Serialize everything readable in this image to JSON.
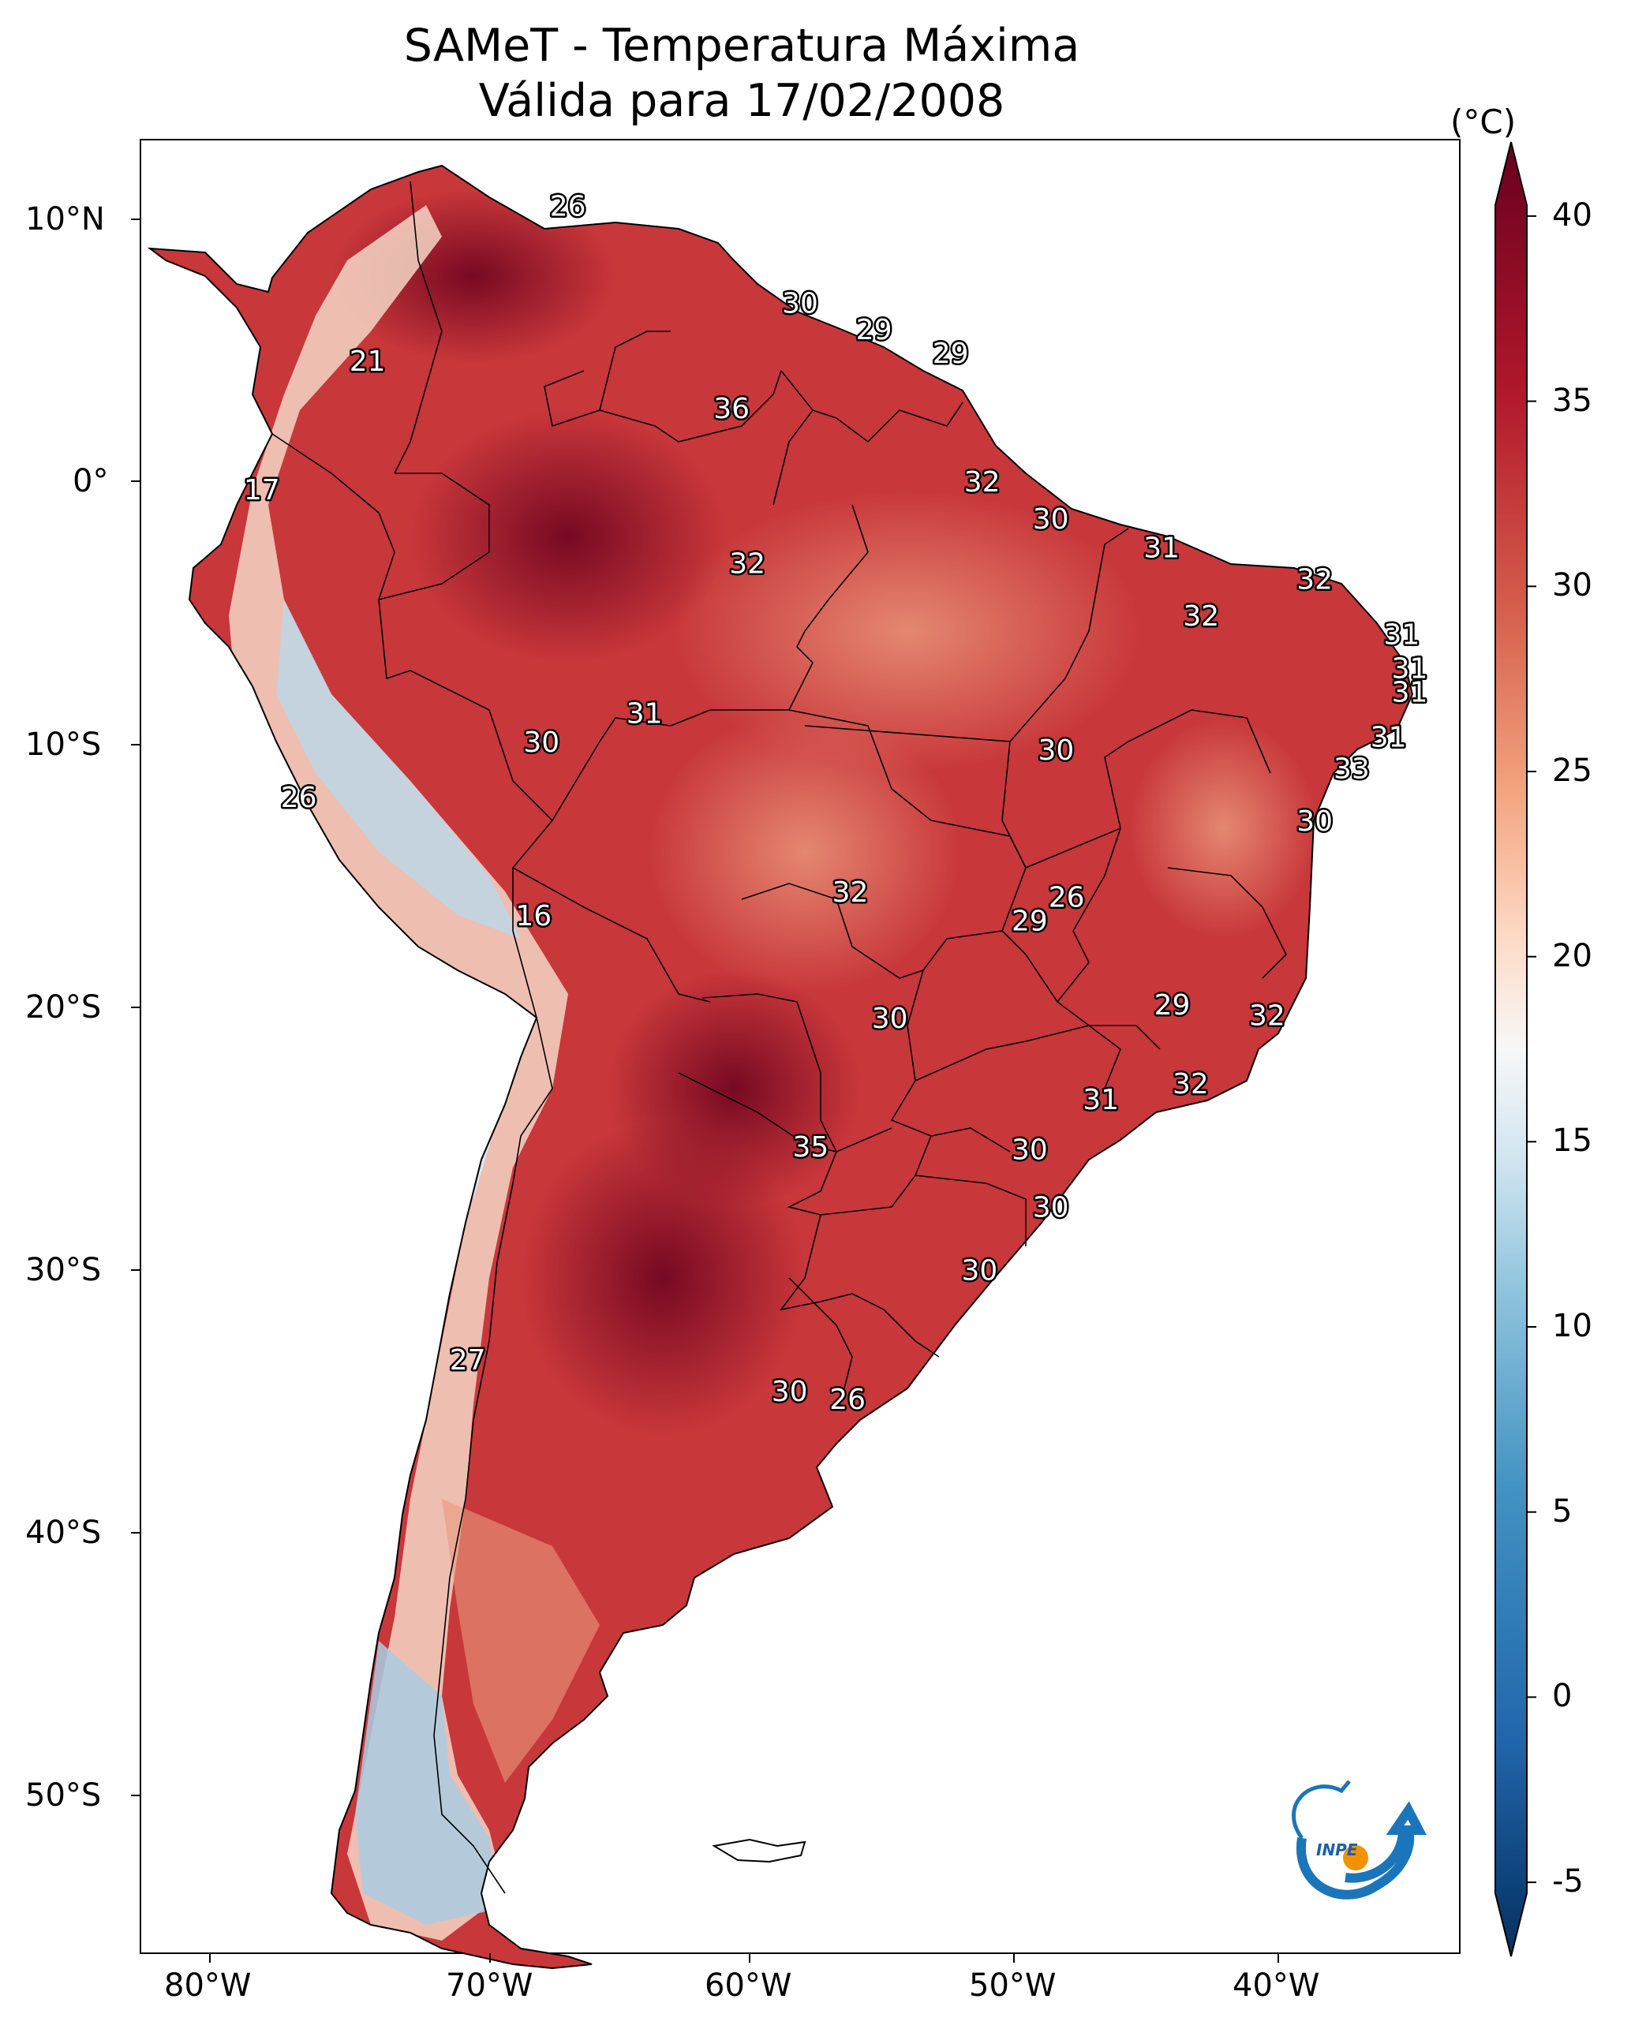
{
  "title": {
    "line1": "SAMeT - Temperatura Máxima",
    "line2": "Válida para 17/02/2008"
  },
  "colorbar": {
    "unit": "(°C)",
    "min": -7,
    "max": 42,
    "ticks": [
      40,
      35,
      30,
      25,
      20,
      15,
      10,
      5,
      0,
      -5
    ],
    "tick_labels": [
      "40",
      "35",
      "30",
      "25",
      "20",
      "15",
      "10",
      "5",
      "0",
      "-5"
    ],
    "colors": [
      "#053061",
      "#2166ac",
      "#4393c3",
      "#92c5de",
      "#d1e5f0",
      "#f7f7f7",
      "#fddbc7",
      "#f4a582",
      "#d6604d",
      "#b2182b",
      "#67001f"
    ]
  },
  "axes": {
    "lon_range": [
      -83,
      -33
    ],
    "lat_range": [
      -56,
      13
    ],
    "lon_ticks": [
      -80,
      -70,
      -60,
      -50,
      -40
    ],
    "lon_labels": [
      "80°W",
      "70°W",
      "60°W",
      "50°W",
      "40°W"
    ],
    "lat_ticks": [
      10,
      0,
      -10,
      -20,
      -30,
      -40,
      -50
    ],
    "lat_labels": [
      "10°N",
      "0°",
      "10°S",
      "20°S",
      "30°S",
      "40°S",
      "50°S"
    ]
  },
  "stations": [
    {
      "lon": -66.8,
      "lat": 10.5,
      "value": "26"
    },
    {
      "lon": -74.4,
      "lat": 4.6,
      "value": "21"
    },
    {
      "lon": -78.4,
      "lat": -0.3,
      "value": "17"
    },
    {
      "lon": -58.0,
      "lat": 6.8,
      "value": "30"
    },
    {
      "lon": -55.2,
      "lat": 5.8,
      "value": "29"
    },
    {
      "lon": -52.3,
      "lat": 4.9,
      "value": "29"
    },
    {
      "lon": -60.6,
      "lat": 2.8,
      "value": "36"
    },
    {
      "lon": -51.1,
      "lat": 0.0,
      "value": "32"
    },
    {
      "lon": -48.5,
      "lat": -1.4,
      "value": "30"
    },
    {
      "lon": -60.0,
      "lat": -3.1,
      "value": "32"
    },
    {
      "lon": -44.3,
      "lat": -2.5,
      "value": "31"
    },
    {
      "lon": -38.5,
      "lat": -3.7,
      "value": "32"
    },
    {
      "lon": -42.8,
      "lat": -5.1,
      "value": "32"
    },
    {
      "lon": -35.2,
      "lat": -5.8,
      "value": "31"
    },
    {
      "lon": -34.9,
      "lat": -7.1,
      "value": "31"
    },
    {
      "lon": -34.9,
      "lat": -8.0,
      "value": "31"
    },
    {
      "lon": -35.7,
      "lat": -9.7,
      "value": "31"
    },
    {
      "lon": -37.1,
      "lat": -10.9,
      "value": "33"
    },
    {
      "lon": -63.9,
      "lat": -8.8,
      "value": "31"
    },
    {
      "lon": -67.8,
      "lat": -9.9,
      "value": "30"
    },
    {
      "lon": -48.3,
      "lat": -10.2,
      "value": "30"
    },
    {
      "lon": -38.5,
      "lat": -12.9,
      "value": "30"
    },
    {
      "lon": -77.0,
      "lat": -12.0,
      "value": "26"
    },
    {
      "lon": -56.1,
      "lat": -15.6,
      "value": "32"
    },
    {
      "lon": -47.9,
      "lat": -15.8,
      "value": "26"
    },
    {
      "lon": -49.3,
      "lat": -16.7,
      "value": "29"
    },
    {
      "lon": -68.1,
      "lat": -16.5,
      "value": "16"
    },
    {
      "lon": -54.6,
      "lat": -20.4,
      "value": "30"
    },
    {
      "lon": -43.9,
      "lat": -19.9,
      "value": "29"
    },
    {
      "lon": -40.3,
      "lat": -20.3,
      "value": "32"
    },
    {
      "lon": -43.2,
      "lat": -22.9,
      "value": "32"
    },
    {
      "lon": -46.6,
      "lat": -23.5,
      "value": "31"
    },
    {
      "lon": -57.6,
      "lat": -25.3,
      "value": "35"
    },
    {
      "lon": -49.3,
      "lat": -25.4,
      "value": "30"
    },
    {
      "lon": -48.5,
      "lat": -27.6,
      "value": "30"
    },
    {
      "lon": -51.2,
      "lat": -30.0,
      "value": "30"
    },
    {
      "lon": -70.6,
      "lat": -33.4,
      "value": "27"
    },
    {
      "lon": -58.4,
      "lat": -34.6,
      "value": "30"
    },
    {
      "lon": -56.2,
      "lat": -34.9,
      "value": "26"
    }
  ],
  "logo": {
    "text": "INPE"
  }
}
